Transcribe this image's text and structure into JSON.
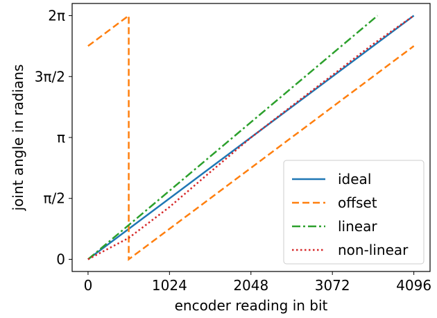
{
  "chart_data": {
    "type": "line",
    "xlabel": "encoder reading in bit",
    "ylabel": "joint angle in radians",
    "xlim": [
      -200,
      4300
    ],
    "ylim": [
      -0.314,
      6.597
    ],
    "xticks": [
      {
        "value": 0,
        "label": "0"
      },
      {
        "value": 1024,
        "label": "1024"
      },
      {
        "value": 2048,
        "label": "2048"
      },
      {
        "value": 3072,
        "label": "3072"
      },
      {
        "value": 4096,
        "label": "4096"
      }
    ],
    "yticks": [
      {
        "value": 0,
        "label": "0"
      },
      {
        "value": 1.5708,
        "label": "π/2"
      },
      {
        "value": 3.1416,
        "label": "π"
      },
      {
        "value": 4.7124,
        "label": "3π/2"
      },
      {
        "value": 6.2832,
        "label": "2π"
      }
    ],
    "grid": false,
    "legend_position": "bottom-right",
    "series": [
      {
        "name": "ideal",
        "color": "#1f77b4",
        "dash": "solid",
        "x": [
          0,
          4096
        ],
        "y": [
          0,
          6.2832
        ]
      },
      {
        "name": "offset",
        "color": "#ff7f0e",
        "dash": "dashed",
        "x": [
          0,
          512,
          512,
          4096
        ],
        "y": [
          5.5,
          6.2832,
          0,
          5.5
        ]
      },
      {
        "name": "linear",
        "color": "#2ca02c",
        "dash": "dashdot",
        "x": [
          0,
          3640
        ],
        "y": [
          0,
          6.2832
        ]
      },
      {
        "name": "non-linear",
        "color": "#d62728",
        "dash": "dotted",
        "x": [
          0,
          512,
          1024,
          1536,
          2048,
          2560,
          3072,
          3584,
          4096
        ],
        "y": [
          0,
          0.55,
          1.35,
          2.25,
          3.14,
          3.95,
          4.75,
          5.55,
          6.2832
        ]
      }
    ]
  }
}
